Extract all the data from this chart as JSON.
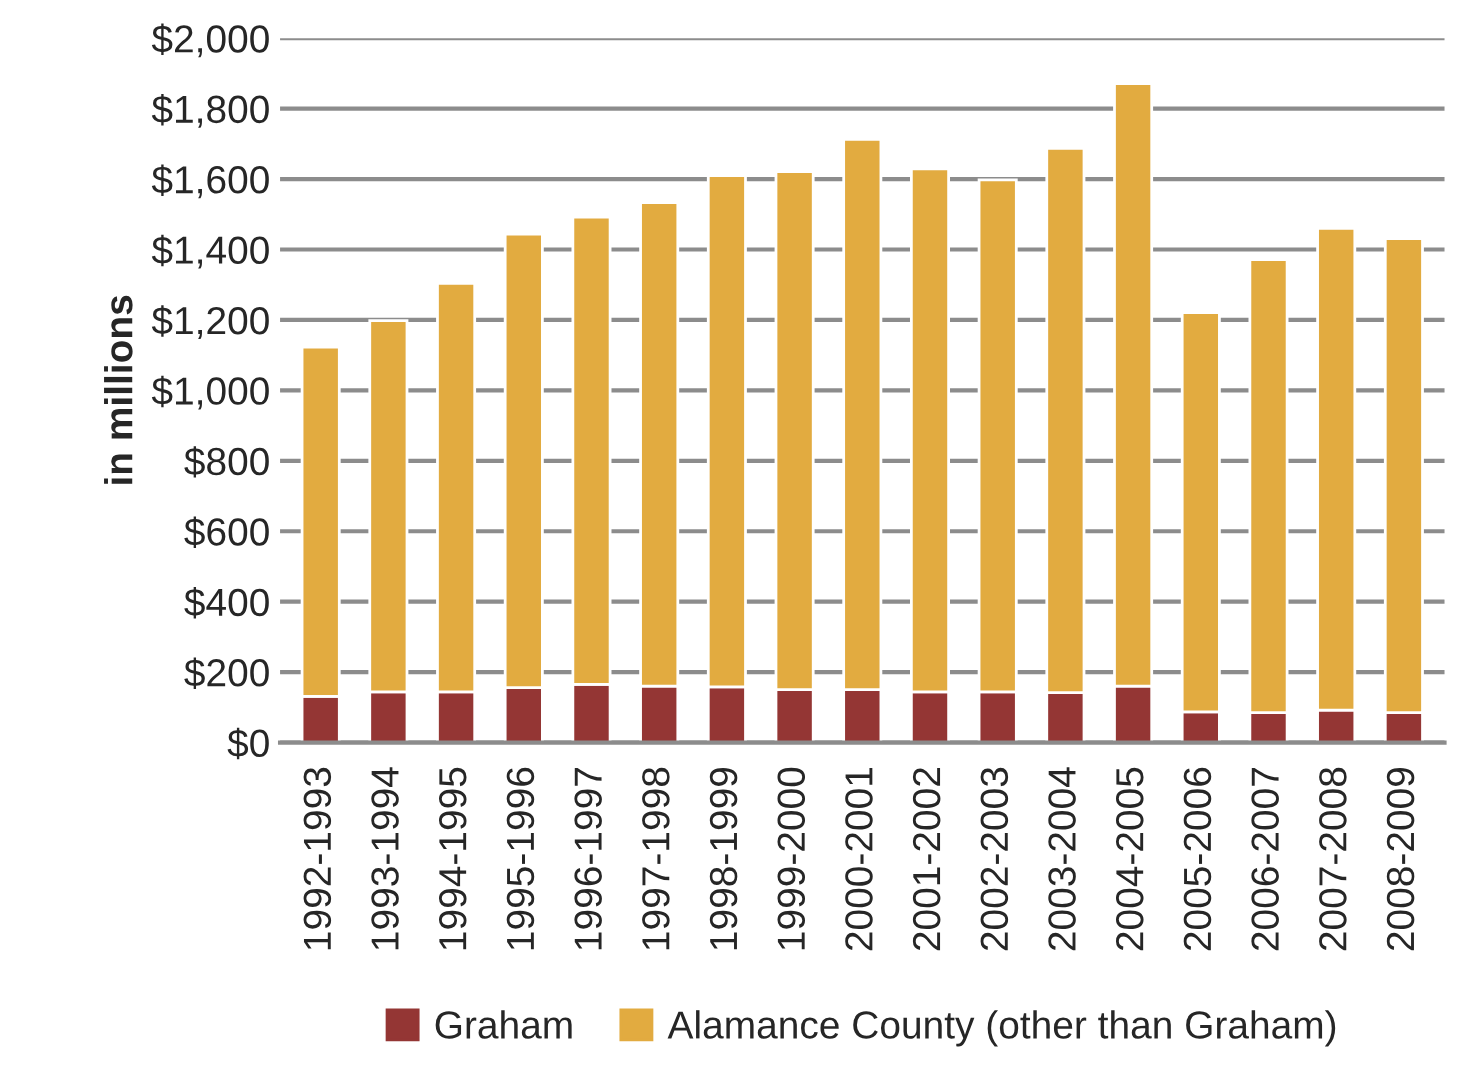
{
  "chart_data": {
    "type": "bar",
    "stacked": true,
    "ylabel": "in millions",
    "categories": [
      "1992-1993",
      "1993-1994",
      "1994-1995",
      "1995-1996",
      "1996-1997",
      "1997-1998",
      "1998-1999",
      "1999-2000",
      "2000-2001",
      "2001-2002",
      "2002-2003",
      "2003-2004",
      "2004-2005",
      "2005-2006",
      "2006-2007",
      "2007-2008",
      "2008-2009"
    ],
    "series": [
      {
        "name": "Graham",
        "color": "#943634",
        "values": [
          131,
          144,
          144,
          156,
          165,
          160,
          158,
          150,
          150,
          144,
          144,
          142,
          160,
          87,
          85,
          92,
          85
        ]
      },
      {
        "name": "Alamance County (other than Graham)",
        "color": "#e2ab40",
        "values": [
          992,
          1054,
          1160,
          1288,
          1327,
          1373,
          1452,
          1471,
          1563,
          1485,
          1454,
          1545,
          1711,
          1134,
          1286,
          1368,
          1346
        ]
      }
    ],
    "ylim": [
      0,
      2000
    ],
    "yticks": [
      {
        "value": 0,
        "label": "$0"
      },
      {
        "value": 200,
        "label": "$200"
      },
      {
        "value": 400,
        "label": "$400"
      },
      {
        "value": 600,
        "label": "$600"
      },
      {
        "value": 800,
        "label": "$800"
      },
      {
        "value": 1000,
        "label": "$1,000"
      },
      {
        "value": 1200,
        "label": "$1,200"
      },
      {
        "value": 1400,
        "label": "$1,400"
      },
      {
        "value": 1600,
        "label": "$1,600"
      },
      {
        "value": 1800,
        "label": "$1,800"
      },
      {
        "value": 2000,
        "label": "$2,000"
      }
    ],
    "grid": "y",
    "legend": "bottom"
  }
}
